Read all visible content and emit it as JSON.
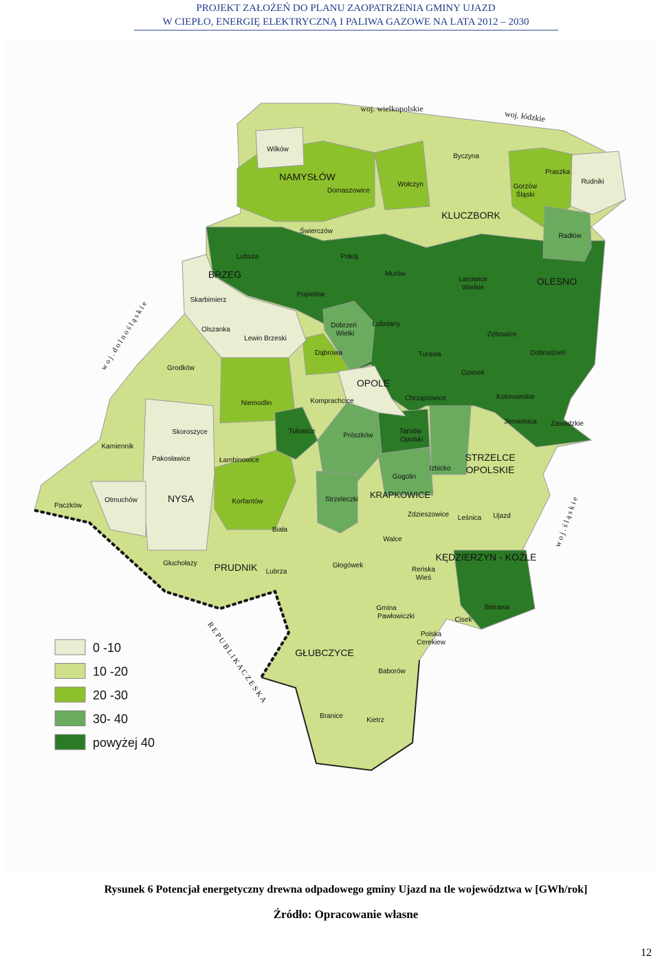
{
  "header": {
    "lines": [
      "PROJEKT ZAŁOŻEŃ DO PLANU ZAOPATRZENIA GMINY UJAZD",
      "W CIEPŁO, ENERGIĘ ELEKTRYCZNĄ I PALIWA GAZOWE NA LATA 2012 – 2030"
    ]
  },
  "map": {
    "labels": [
      "NAMYSŁÓW",
      "KLUCZBORK",
      "BRZEG",
      "OLESNO",
      "OPOLE",
      "STRZELCE",
      "OPOLSKIE",
      "NYSA",
      "KRAPKOWICE",
      "KĘDZIERZYN - KOŹLE",
      "PRUDNIK",
      "GŁUBCZYCE",
      "Wilków",
      "Domaszowice",
      "Wołczyn",
      "Byczyna",
      "Praszka",
      "Rudniki",
      "Gorzów",
      "Śląski",
      "Świerczów",
      "Radłów",
      "Lubsza",
      "Pokój",
      "Murów",
      "Lasowice",
      "Wielkie",
      "Skarbimierz",
      "Popielów",
      "Dobrzeń",
      "Wielki",
      "Łubniany",
      "Zębowice",
      "Olszanka",
      "Lewin Brzeski",
      "Dąbrowa",
      "Turawa",
      "Dobrodzień",
      "Grodków",
      "Ozimek",
      "Niemodlin",
      "Komprachcice",
      "Chrząstowice",
      "Kolonowskie",
      "Skoroszyce",
      "Tułowice",
      "Prószków",
      "Tarnów",
      "Opolski",
      "Jemielnica",
      "Zawadzkie",
      "Kamiennik",
      "Pakosławice",
      "Łambinowice",
      "Gogolin",
      "Izbicko",
      "Paczków",
      "Otmuchów",
      "Korfantów",
      "Strzeleczki",
      "Zdzieszowice",
      "Leśnica",
      "Ujazd",
      "Biała",
      "Walce",
      "Głuchołazy",
      "Lubrza",
      "Głogówek",
      "Reńska",
      "Wieś",
      "Gmina",
      "Pawłowiczki",
      "Cisek",
      "Bierawa",
      "Polska",
      "Cerekiew",
      "Baborów",
      "Branice",
      "Kietrz",
      "woj. wielkopolskie",
      "woj. łódzkie",
      "w o j .  d o l n o ś l ą s k i e",
      "w o j .  ś l ą s k i e",
      "R E P U B L I K A   C Z E S K A"
    ],
    "legend": [
      {
        "label": "0 -10",
        "color": "#e9eed3"
      },
      {
        "label": "10 -20",
        "color": "#cfe08c"
      },
      {
        "label": "20 -30",
        "color": "#8dc12c"
      },
      {
        "label": "30- 40",
        "color": "#6aab5e"
      },
      {
        "label": "powyżej 40",
        "color": "#2b7a25"
      }
    ]
  },
  "caption": "Rysunek 6 Potencjał energetyczny drewna odpadowego  gminy Ujazd na tle województwa w [GWh/rok]",
  "source": "Źródło: Opracowanie własne",
  "page_number": "12"
}
